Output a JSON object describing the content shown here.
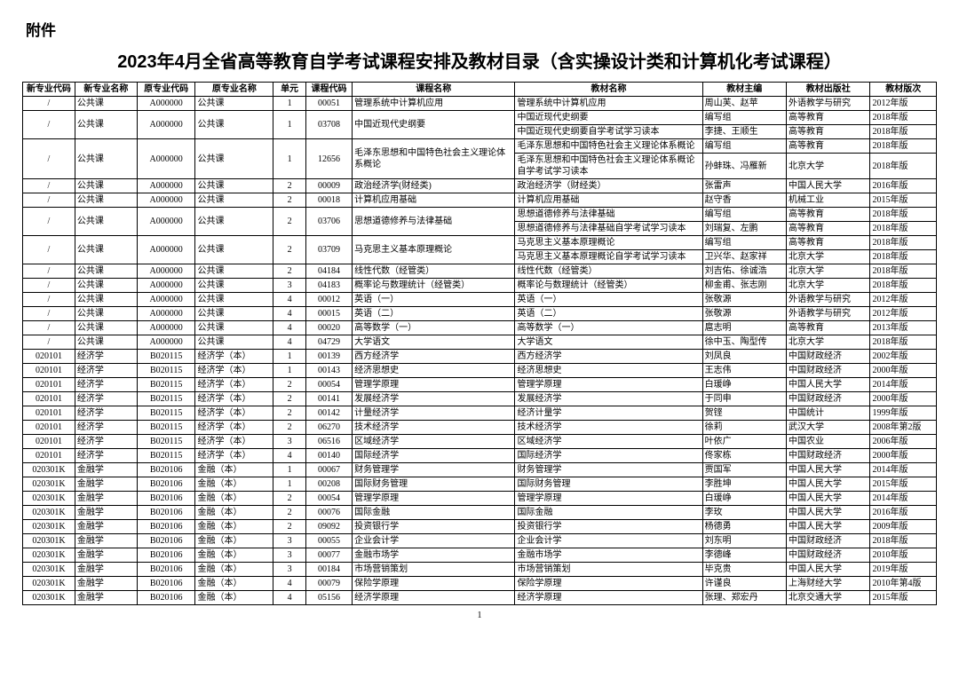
{
  "attachment_label": "附件",
  "title": "2023年4月全省高等教育自学考试课程安排及教材目录（含实操设计类和计算机化考试课程）",
  "page_number": "1",
  "columns": [
    "新专业代码",
    "新专业名称",
    "原专业代码",
    "原专业名称",
    "单元",
    "课程代码",
    "课程名称",
    "教材名称",
    "教材主编",
    "教材出版社",
    "教材版次"
  ],
  "rows": [
    {
      "c": [
        "/",
        "公共课",
        "A000000",
        "公共课",
        "1",
        "00051",
        "管理系统中计算机应用",
        "管理系统中计算机应用",
        "周山芙、赵苹",
        "外语教学与研究",
        "2012年版"
      ]
    },
    {
      "c": [
        "/",
        "公共课",
        "A000000",
        "公共课",
        "1",
        "03708",
        "中国近现代史纲要",
        "中国近现代史纲要",
        "编写组",
        "高等教育",
        "2018年版"
      ],
      "rs": {
        "0": 2,
        "1": 2,
        "2": 2,
        "3": 2,
        "4": 2,
        "5": 2,
        "6": 2
      }
    },
    {
      "c": [
        "",
        "",
        "",
        "",
        "",
        "",
        "",
        "中国近现代史纲要自学考试学习读本",
        "李捷、王顺生",
        "高等教育",
        "2018年版"
      ],
      "skip": [
        0,
        1,
        2,
        3,
        4,
        5,
        6
      ]
    },
    {
      "c": [
        "/",
        "公共课",
        "A000000",
        "公共课",
        "1",
        "12656",
        "毛泽东思想和中国特色社会主义理论体系概论",
        "毛泽东思想和中国特色社会主义理论体系概论",
        "编写组",
        "高等教育",
        "2018年版"
      ],
      "rs": {
        "0": 2,
        "1": 2,
        "2": 2,
        "3": 2,
        "4": 2,
        "5": 2,
        "6": 2
      }
    },
    {
      "c": [
        "",
        "",
        "",
        "",
        "",
        "",
        "",
        "毛泽东思想和中国特色社会主义理论体系概论自学考试学习读本",
        "孙蚌珠、冯雁新",
        "北京大学",
        "2018年版"
      ],
      "skip": [
        0,
        1,
        2,
        3,
        4,
        5,
        6
      ]
    },
    {
      "c": [
        "/",
        "公共课",
        "A000000",
        "公共课",
        "2",
        "00009",
        "政治经济学(财经类)",
        "政治经济学（财经类）",
        "张雷声",
        "中国人民大学",
        "2016年版"
      ]
    },
    {
      "c": [
        "/",
        "公共课",
        "A000000",
        "公共课",
        "2",
        "00018",
        "计算机应用基础",
        "计算机应用基础",
        "赵守香",
        "机械工业",
        "2015年版"
      ]
    },
    {
      "c": [
        "/",
        "公共课",
        "A000000",
        "公共课",
        "2",
        "03706",
        "思想道德修养与法律基础",
        "思想道德修养与法律基础",
        "编写组",
        "高等教育",
        "2018年版"
      ],
      "rs": {
        "0": 2,
        "1": 2,
        "2": 2,
        "3": 2,
        "4": 2,
        "5": 2,
        "6": 2
      }
    },
    {
      "c": [
        "",
        "",
        "",
        "",
        "",
        "",
        "",
        "思想道德修养与法律基础自学考试学习读本",
        "刘瑞复、左鹏",
        "高等教育",
        "2018年版"
      ],
      "skip": [
        0,
        1,
        2,
        3,
        4,
        5,
        6
      ]
    },
    {
      "c": [
        "/",
        "公共课",
        "A000000",
        "公共课",
        "2",
        "03709",
        "马克思主义基本原理概论",
        "马克思主义基本原理概论",
        "编写组",
        "高等教育",
        "2018年版"
      ],
      "rs": {
        "0": 2,
        "1": 2,
        "2": 2,
        "3": 2,
        "4": 2,
        "5": 2,
        "6": 2
      }
    },
    {
      "c": [
        "",
        "",
        "",
        "",
        "",
        "",
        "",
        "马克思主义基本原理概论自学考试学习读本",
        "卫兴华、赵家祥",
        "北京大学",
        "2018年版"
      ],
      "skip": [
        0,
        1,
        2,
        3,
        4,
        5,
        6
      ]
    },
    {
      "c": [
        "/",
        "公共课",
        "A000000",
        "公共课",
        "2",
        "04184",
        "线性代数（经管类）",
        "线性代数（经管类）",
        "刘吉佑、徐诚浩",
        "北京大学",
        "2018年版"
      ]
    },
    {
      "c": [
        "/",
        "公共课",
        "A000000",
        "公共课",
        "3",
        "04183",
        "概率论与数理统计（经管类）",
        "概率论与数理统计（经管类）",
        "柳金甫、张志刚",
        "北京大学",
        "2018年版"
      ]
    },
    {
      "c": [
        "/",
        "公共课",
        "A000000",
        "公共课",
        "4",
        "00012",
        "英语（一）",
        "英语（一）",
        "张敬源",
        "外语教学与研究",
        "2012年版"
      ]
    },
    {
      "c": [
        "/",
        "公共课",
        "A000000",
        "公共课",
        "4",
        "00015",
        "英语（二）",
        "英语（二）",
        "张敬源",
        "外语教学与研究",
        "2012年版"
      ]
    },
    {
      "c": [
        "/",
        "公共课",
        "A000000",
        "公共课",
        "4",
        "00020",
        "高等数学（一）",
        "高等数学（一）",
        "扈志明",
        "高等教育",
        "2013年版"
      ]
    },
    {
      "c": [
        "/",
        "公共课",
        "A000000",
        "公共课",
        "4",
        "04729",
        "大学语文",
        "大学语文",
        "徐中玉、陶型传",
        "北京大学",
        "2018年版"
      ]
    },
    {
      "c": [
        "020101",
        "经济学",
        "B020115",
        "经济学（本）",
        "1",
        "00139",
        "西方经济学",
        "西方经济学",
        "刘凤良",
        "中国财政经济",
        "2002年版"
      ]
    },
    {
      "c": [
        "020101",
        "经济学",
        "B020115",
        "经济学（本）",
        "1",
        "00143",
        "经济思想史",
        "经济思想史",
        "王志伟",
        "中国财政经济",
        "2000年版"
      ]
    },
    {
      "c": [
        "020101",
        "经济学",
        "B020115",
        "经济学（本）",
        "2",
        "00054",
        "管理学原理",
        "管理学原理",
        "白瑗峥",
        "中国人民大学",
        "2014年版"
      ]
    },
    {
      "c": [
        "020101",
        "经济学",
        "B020115",
        "经济学（本）",
        "2",
        "00141",
        "发展经济学",
        "发展经济学",
        "于同申",
        "中国财政经济",
        "2000年版"
      ]
    },
    {
      "c": [
        "020101",
        "经济学",
        "B020115",
        "经济学（本）",
        "2",
        "00142",
        "计量经济学",
        "经济计量学",
        "贺铿",
        "中国统计",
        "1999年版"
      ]
    },
    {
      "c": [
        "020101",
        "经济学",
        "B020115",
        "经济学（本）",
        "2",
        "06270",
        "技术经济学",
        "技术经济学",
        "徐莉",
        "武汉大学",
        "2008年第2版"
      ]
    },
    {
      "c": [
        "020101",
        "经济学",
        "B020115",
        "经济学（本）",
        "3",
        "06516",
        "区域经济学",
        "区域经济学",
        "叶依广",
        "中国农业",
        "2006年版"
      ]
    },
    {
      "c": [
        "020101",
        "经济学",
        "B020115",
        "经济学（本）",
        "4",
        "00140",
        "国际经济学",
        "国际经济学",
        "佟家栋",
        "中国财政经济",
        "2000年版"
      ]
    },
    {
      "c": [
        "020301K",
        "金融学",
        "B020106",
        "金融（本）",
        "1",
        "00067",
        "财务管理学",
        "财务管理学",
        "贾国军",
        "中国人民大学",
        "2014年版"
      ]
    },
    {
      "c": [
        "020301K",
        "金融学",
        "B020106",
        "金融（本）",
        "1",
        "00208",
        "国际财务管理",
        "国际财务管理",
        "李胜坤",
        "中国人民大学",
        "2015年版"
      ]
    },
    {
      "c": [
        "020301K",
        "金融学",
        "B020106",
        "金融（本）",
        "2",
        "00054",
        "管理学原理",
        "管理学原理",
        "白瑗峥",
        "中国人民大学",
        "2014年版"
      ]
    },
    {
      "c": [
        "020301K",
        "金融学",
        "B020106",
        "金融（本）",
        "2",
        "00076",
        "国际金融",
        "国际金融",
        "李玫",
        "中国人民大学",
        "2016年版"
      ]
    },
    {
      "c": [
        "020301K",
        "金融学",
        "B020106",
        "金融（本）",
        "2",
        "09092",
        "投资银行学",
        "投资银行学",
        "杨德勇",
        "中国人民大学",
        "2009年版"
      ]
    },
    {
      "c": [
        "020301K",
        "金融学",
        "B020106",
        "金融（本）",
        "3",
        "00055",
        "企业会计学",
        "企业会计学",
        "刘东明",
        "中国财政经济",
        "2018年版"
      ]
    },
    {
      "c": [
        "020301K",
        "金融学",
        "B020106",
        "金融（本）",
        "3",
        "00077",
        "金融市场学",
        "金融市场学",
        "李德峰",
        "中国财政经济",
        "2010年版"
      ]
    },
    {
      "c": [
        "020301K",
        "金融学",
        "B020106",
        "金融（本）",
        "3",
        "00184",
        "市场营销策划",
        "市场营销策划",
        "毕克贵",
        "中国人民大学",
        "2019年版"
      ]
    },
    {
      "c": [
        "020301K",
        "金融学",
        "B020106",
        "金融（本）",
        "4",
        "00079",
        "保险学原理",
        "保险学原理",
        "许谨良",
        "上海财经大学",
        "2010年第4版"
      ]
    },
    {
      "c": [
        "020301K",
        "金融学",
        "B020106",
        "金融（本）",
        "4",
        "05156",
        "经济学原理",
        "经济学原理",
        "张理、郑宏丹",
        "北京交通大学",
        "2015年版"
      ]
    }
  ]
}
